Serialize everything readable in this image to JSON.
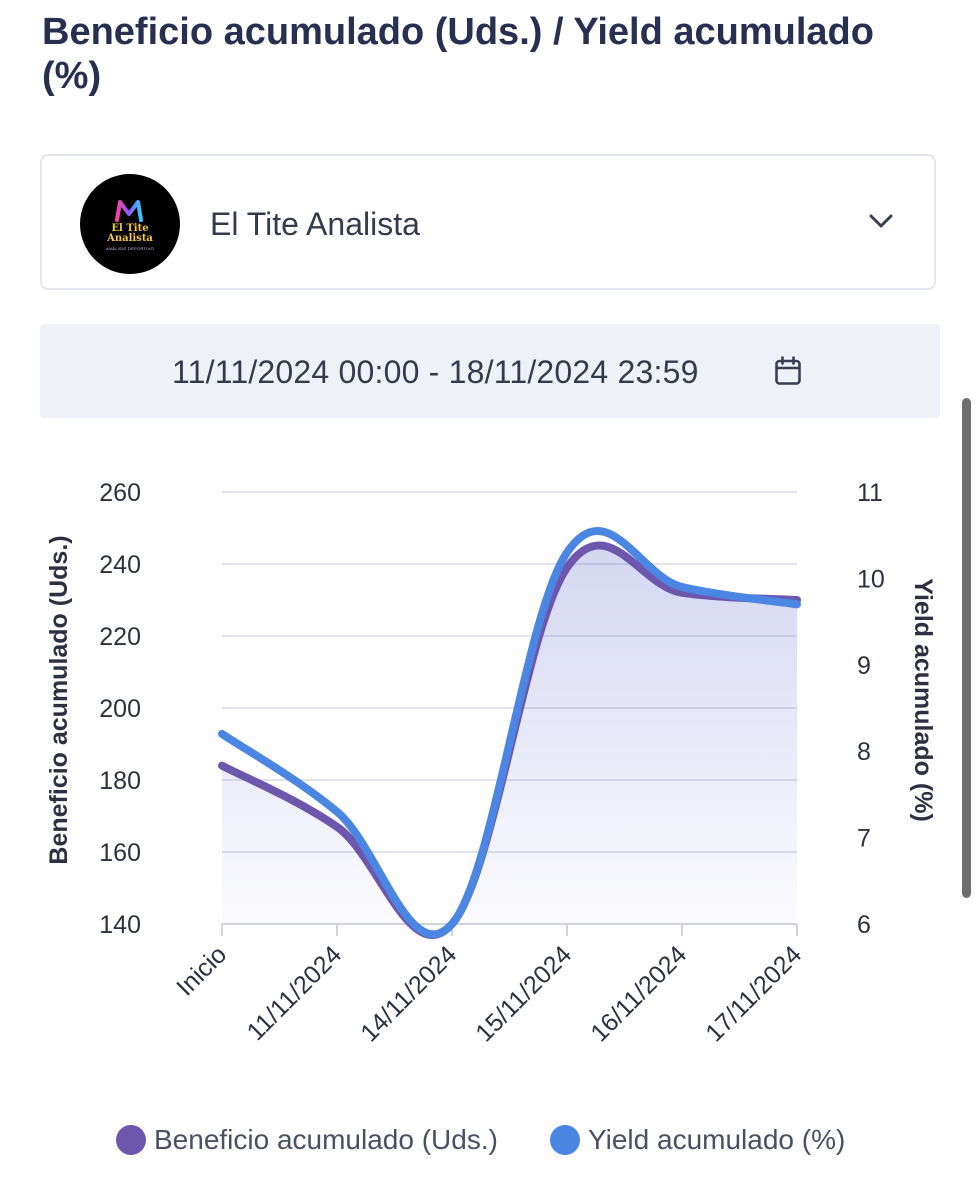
{
  "page": {
    "title": "Beneficio acumulado (Uds.) / Yield acumulado (%)"
  },
  "selector": {
    "label": "El Tite Analista",
    "avatar_text": "El Tite\nAnalista",
    "avatar_subtext": "ANÁLISIS DEPORTIVO",
    "avatar_icon": "logo-m-icon",
    "chevron_icon": "chevron-down-icon"
  },
  "date_range": {
    "text": "11/11/2024 00:00 - 18/11/2024 23:59",
    "icon": "calendar-icon"
  },
  "colors": {
    "profit": "#6c57ad",
    "yield": "#4a86e2",
    "grid": "#e1e3e8",
    "title": "#283051"
  },
  "chart_data": {
    "type": "line",
    "categories": [
      "Inicio",
      "11/11/2024",
      "14/11/2024",
      "15/11/2024",
      "16/11/2024",
      "17/11/2024"
    ],
    "series": [
      {
        "name": "Beneficio acumulado (Uds.)",
        "axis": "left",
        "values": [
          184,
          167,
          140,
          239,
          232,
          230
        ]
      },
      {
        "name": "Yield acumulado (%)",
        "axis": "right",
        "values": [
          8.2,
          7.3,
          6.0,
          10.3,
          9.9,
          9.7
        ]
      }
    ],
    "ylabel": "Beneficio acumulado (Uds.)",
    "y2label": "Yield acumulado (%)",
    "ylim": [
      140,
      260
    ],
    "y2lim": [
      6,
      11
    ],
    "yticks": [
      140,
      160,
      180,
      200,
      220,
      240,
      260
    ],
    "y2ticks": [
      6,
      7,
      8,
      9,
      10,
      11
    ],
    "grid": true,
    "legend_position": "bottom",
    "legend": [
      "Beneficio acumulado (Uds.)",
      "Yield acumulado (%)"
    ]
  }
}
